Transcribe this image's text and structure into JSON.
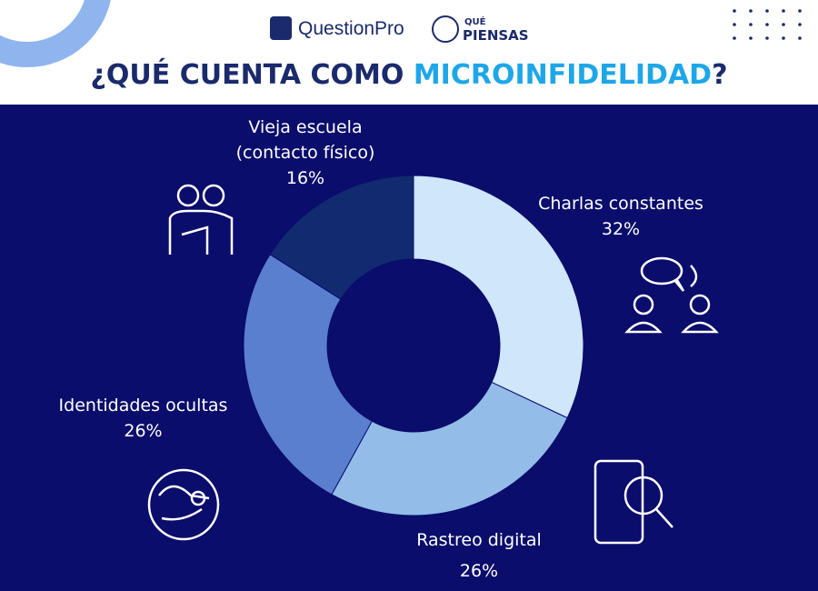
{
  "logos": {
    "brand": "QuestionPro",
    "partner_top": "QUÉ",
    "partner_bottom": "PIENSAS"
  },
  "chart_data": {
    "type": "donut",
    "title": [
      "¿QUÉ CUENTA COMO ",
      "MICROINFIDELIDAD",
      "?"
    ],
    "categories": [
      "Charlas constantes",
      "Rastreo digital",
      "Identidades ocultas",
      "Vieja escuela (contacto físico)"
    ],
    "values": [
      32,
      26,
      26,
      16
    ],
    "value_labels": [
      "32%",
      "26%",
      "26%",
      "16%"
    ],
    "colors": [
      "#cfe6fb",
      "#93bde8",
      "#5b7fcf",
      "#112a70"
    ]
  }
}
